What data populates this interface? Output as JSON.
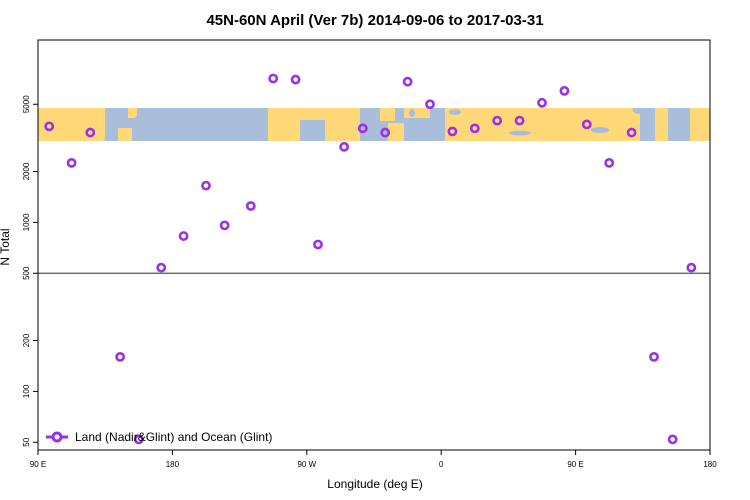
{
  "chart_data": {
    "type": "scatter",
    "title": "45N-60N April (Ver 7b)   2014-09-06 to 2017-03-31",
    "xlabel": "Longitude (deg E)",
    "ylabel": "N Total",
    "y_scale": "log",
    "xlim": [
      90,
      540
    ],
    "ylim": [
      45,
      12000
    ],
    "x_ticks": [
      {
        "value": 90,
        "label": "90 E"
      },
      {
        "value": 180,
        "label": "180"
      },
      {
        "value": 270,
        "label": "90 W"
      },
      {
        "value": 360,
        "label": "0"
      },
      {
        "value": 450,
        "label": "90 E"
      },
      {
        "value": 540,
        "label": "180"
      }
    ],
    "y_ticks": [
      {
        "value": 50,
        "label": "50"
      },
      {
        "value": 100,
        "label": "100"
      },
      {
        "value": 200,
        "label": "200"
      },
      {
        "value": 500,
        "label": "500"
      },
      {
        "value": 1000,
        "label": "1000"
      },
      {
        "value": 2000,
        "label": "2000"
      },
      {
        "value": 5000,
        "label": "5000"
      }
    ],
    "reference_line": {
      "y": 500,
      "color": "#555555"
    },
    "map_band": {
      "lat_range": "45N-60N",
      "land_color": "#ffd877",
      "ocean_color": "#a9bedb"
    },
    "series": [
      {
        "name": "Land (Nadir&Glint) and Ocean (Glint)",
        "color": "#9b30e8",
        "marker": "open-circle",
        "points": [
          [
            97.5,
            3700
          ],
          [
            112.5,
            2250
          ],
          [
            125,
            3400
          ],
          [
            145,
            160
          ],
          [
            157.5,
            52
          ],
          [
            172.5,
            540
          ],
          [
            187.5,
            830
          ],
          [
            202.5,
            1650
          ],
          [
            215,
            960
          ],
          [
            232.5,
            1250
          ],
          [
            247.5,
            7100
          ],
          [
            262.5,
            7000
          ],
          [
            277.5,
            740
          ],
          [
            295,
            2800
          ],
          [
            307.5,
            3600
          ],
          [
            322.5,
            3400
          ],
          [
            337.5,
            6800
          ],
          [
            352.5,
            5000
          ],
          [
            367.5,
            3450
          ],
          [
            382.5,
            3600
          ],
          [
            397.5,
            4000
          ],
          [
            412.5,
            4000
          ],
          [
            427.5,
            5100
          ],
          [
            442.5,
            6000
          ],
          [
            457.5,
            3800
          ],
          [
            472.5,
            2250
          ],
          [
            487.5,
            3400
          ],
          [
            502.5,
            160
          ],
          [
            515,
            52
          ],
          [
            527.5,
            540
          ]
        ]
      }
    ]
  }
}
